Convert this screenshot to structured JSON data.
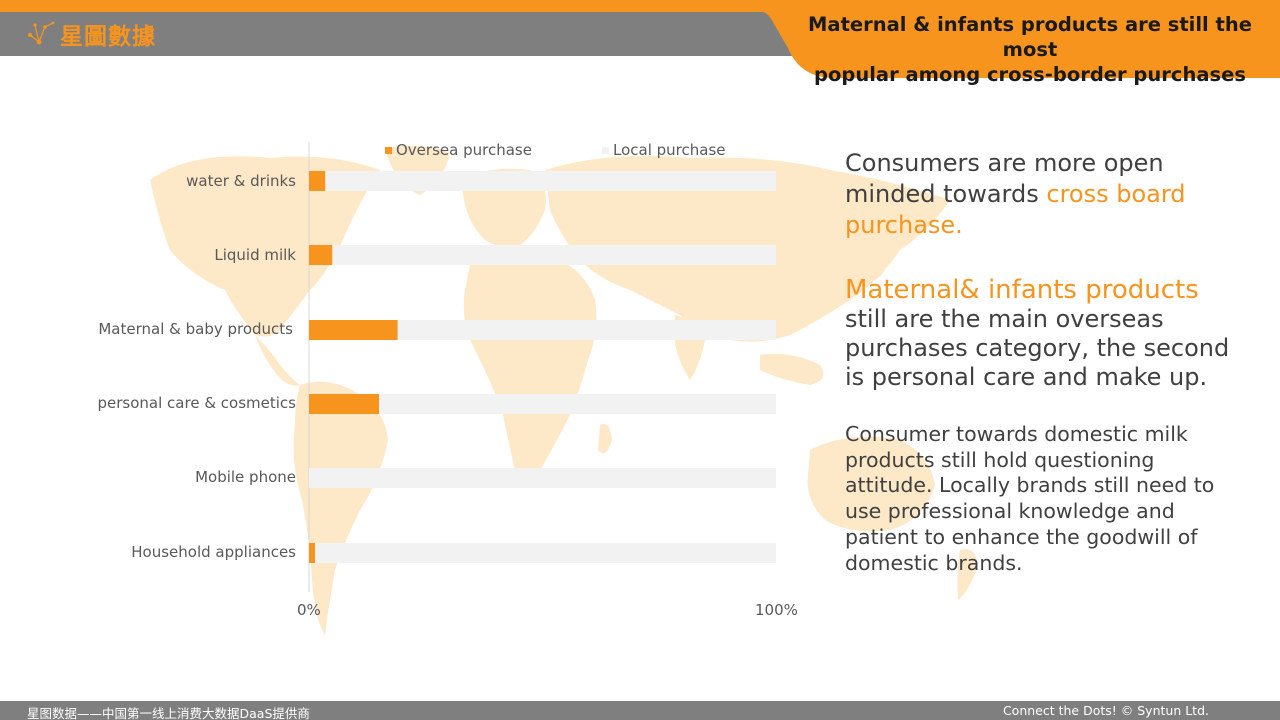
{
  "header": {
    "logo_text": "星圖數據",
    "title_line1": "Maternal & infants products are still the most",
    "title_line2": "popular among cross-border purchases"
  },
  "colors": {
    "accent": "#f7941d",
    "local_bar": "#f2f2f2",
    "header_gray": "#7f7f7f",
    "map": "#fde8c8"
  },
  "chart_data": {
    "type": "bar",
    "orientation": "horizontal",
    "stacked": "100%",
    "categories": [
      "water & drinks",
      "Liquid milk",
      "Maternal & baby products",
      "personal care & cosmetics",
      "Mobile phone",
      "Household appliances"
    ],
    "series": [
      {
        "name": "Oversea purchase",
        "values": [
          3.5,
          5,
          19,
          15,
          0,
          1.3
        ]
      },
      {
        "name": "Local purchase",
        "values": [
          96.5,
          95,
          81,
          85,
          100,
          98.7
        ]
      }
    ],
    "xlim": [
      0,
      100
    ],
    "x_tick_labels": [
      "0%",
      "100%"
    ],
    "legend_position": "top",
    "grid": false
  },
  "text": {
    "p1_plain": "Consumers are more open minded towards ",
    "p1_highlight": "cross board purchase.",
    "p2_highlight": "Maternal& infants products",
    "p2_plain": "still are the main overseas purchases category, the second is personal care and make up.",
    "p3": "Consumer towards domestic milk products still hold questioning attitude. Locally brands still need to use professional knowledge and patient to enhance the goodwill of domestic brands."
  },
  "footer": {
    "left": "星图数据——中国第一线上消费大数据DaaS提供商",
    "right": "Connect the Dots! © Syntun Ltd."
  }
}
